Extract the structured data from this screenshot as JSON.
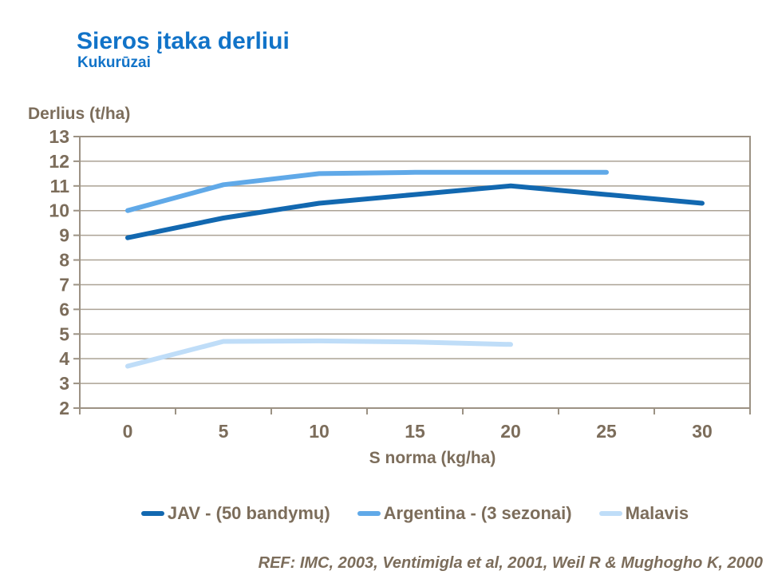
{
  "slide": {
    "title": "Sieros įtaka derliui",
    "subtitle": "Kukurūzai",
    "reference": "REF: IMC, 2003, Ventimigla et al, 2001, Weil R & Mughogho K, 2000"
  },
  "colors": {
    "title_blue": "#1173C8",
    "text_taupe": "#7C6D5B",
    "grid_line": "#ABA295",
    "axis_border": "#9C9284"
  },
  "chart_data": {
    "type": "line",
    "xlabel": "S norma (kg/ha)",
    "ylabel": "Derlius (t/ha)",
    "x_categories": [
      0,
      5,
      10,
      15,
      20,
      25,
      30
    ],
    "xtick_labels": [
      "0",
      "5",
      "10",
      "15",
      "20",
      "25",
      "30"
    ],
    "ylim": [
      2,
      13
    ],
    "yticks": [
      2,
      3,
      4,
      5,
      6,
      7,
      8,
      9,
      10,
      11,
      12,
      13
    ],
    "grid": true,
    "legend_position": "bottom",
    "series": [
      {
        "name": "JAV - (50 bandymų)",
        "color": "#1268B0",
        "x": [
          0,
          5,
          10,
          15,
          20,
          25,
          30
        ],
        "values": [
          8.9,
          9.7,
          10.3,
          10.65,
          11.0,
          10.65,
          10.3
        ]
      },
      {
        "name": "Argentina - (3 sezonai)",
        "color": "#60A9E8",
        "x": [
          0,
          5,
          10,
          15,
          20,
          25
        ],
        "values": [
          10.0,
          11.05,
          11.5,
          11.55,
          11.55,
          11.55
        ]
      },
      {
        "name": "Malavis",
        "color": "#BFDDF8",
        "x": [
          0,
          5,
          10,
          15,
          20
        ],
        "values": [
          3.7,
          4.7,
          4.72,
          4.68,
          4.58
        ]
      }
    ]
  }
}
